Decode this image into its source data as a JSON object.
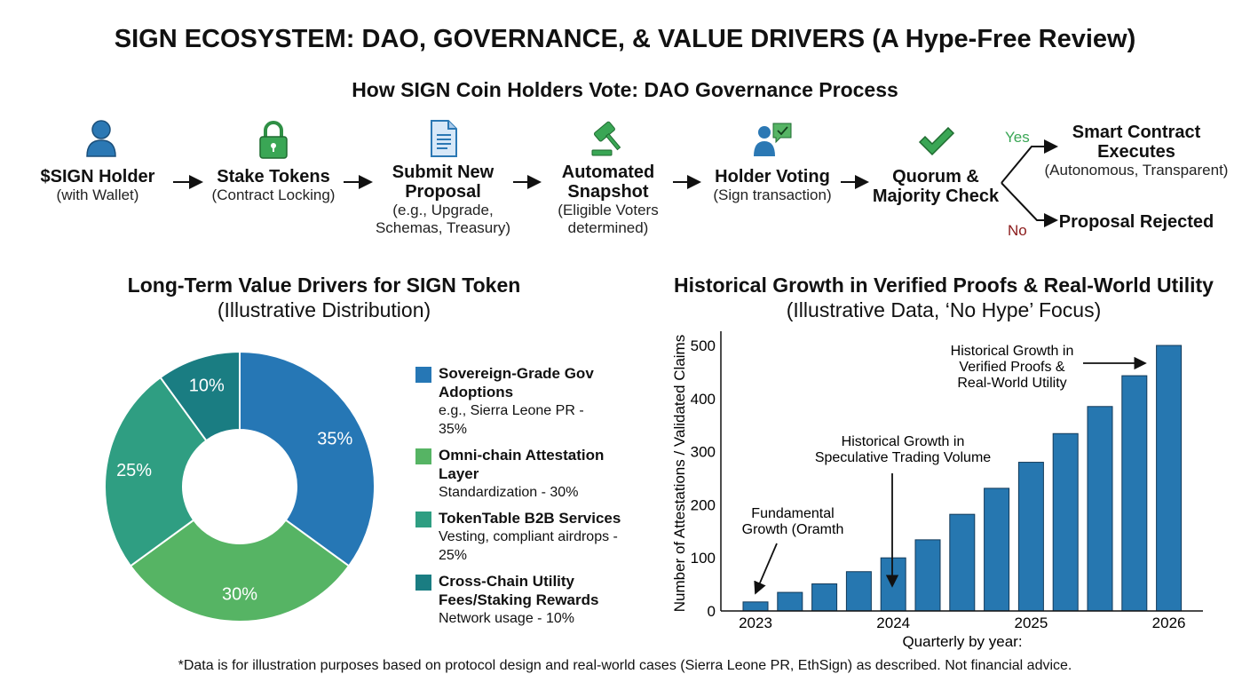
{
  "title": "SIGN ECOSYSTEM: DAO, GOVERNANCE, & VALUE DRIVERS (A Hype-Free Review)",
  "flow": {
    "title": "How SIGN Coin Holders Vote: DAO Governance Process",
    "steps": [
      {
        "label": "$SIGN Holder",
        "sub": "(with Wallet)",
        "icon": "user-icon"
      },
      {
        "label": "Stake Tokens",
        "sub": "(Contract Locking)",
        "icon": "lock-icon"
      },
      {
        "label": "Submit New Proposal",
        "label2": "Proposal",
        "label1": "Submit New",
        "sub": "(e.g., Upgrade,",
        "sub2": "Schemas, Treasury)",
        "icon": "document-icon"
      },
      {
        "label1": "Automated",
        "label2": "Snapshot",
        "sub": "(Eligible Voters",
        "sub2": "determined)",
        "icon": "gavel-icon"
      },
      {
        "label": "Holder Voting",
        "sub": "(Sign transaction)",
        "icon": "voter-check-icon"
      },
      {
        "label1": "Quorum &",
        "label2": "Majority Check",
        "icon": "checkmark-icon"
      }
    ],
    "yes_label": "Yes",
    "no_label": "No",
    "yes_outcome": {
      "label1": "Smart Contract",
      "label2": "Executes",
      "sub": "(Autonomous, Transparent)"
    },
    "no_outcome": {
      "label": "Proposal Rejected"
    },
    "colors": {
      "yes": "#3aa655",
      "no": "#8b1a1a",
      "icon_blue": "#2b78b4",
      "icon_green": "#3aa655"
    }
  },
  "chart_data": [
    {
      "type": "pie",
      "variant": "donut",
      "title": "Long-Term Value Drivers for SIGN Token",
      "subtitle": "(Illustrative Distribution)",
      "legend_position": "right",
      "slices": [
        {
          "name": "Sovereign-Grade Gov Adoptions",
          "desc": "e.g., Sierra Leone PR - 35%",
          "value": 35,
          "label": "35%",
          "color": "#2677b5"
        },
        {
          "name": "Omni-chain Attestation Layer",
          "desc": "Standardization - 30%",
          "value": 30,
          "label": "30%",
          "color": "#56b464"
        },
        {
          "name": "TokenTable B2B Services",
          "desc": "Vesting, compliant airdrops - 25%",
          "value": 25,
          "label": "25%",
          "color": "#2f9e82"
        },
        {
          "name": "Cross-Chain Utility Fees/Staking Rewards",
          "desc": "Network usage - 10%",
          "value": 10,
          "label": "10%",
          "color": "#1a7d82"
        }
      ]
    },
    {
      "type": "bar",
      "title": "Historical Growth in Verified Proofs & Real-World Utility",
      "subtitle": "(Illustrative Data, ‘No Hype’ Focus)",
      "xlabel": "Quarterly by year:",
      "ylabel": "Number of Attestations / Validated Claims",
      "ylim": [
        0,
        500
      ],
      "yticks": [
        0,
        100,
        200,
        300,
        400,
        500
      ],
      "xtick_labels": [
        {
          "label": "2023",
          "index": 0
        },
        {
          "label": "2024",
          "index": 4
        },
        {
          "label": "2025",
          "index": 8
        },
        {
          "label": "2026",
          "index": 12
        }
      ],
      "values": [
        17,
        35,
        51,
        74,
        100,
        134,
        182,
        231,
        280,
        334,
        385,
        443,
        500
      ],
      "bar_color": "#2677b0",
      "grid": false,
      "annotations": [
        {
          "lines": [
            "Fundamental",
            "Growth (Oramth"
          ],
          "target_index": 0
        },
        {
          "lines": [
            "Historical Growth in",
            "Speculative Trading Volume"
          ],
          "target_index": 4
        },
        {
          "lines": [
            "Historical Growth in",
            "Verified Proofs &",
            "Real-World Utility"
          ],
          "target_index": 12
        }
      ]
    }
  ],
  "footer": "*Data is for illustration purposes based on protocol design and real-world cases (Sierra Leone PR, EthSign) as described. Not financial advice."
}
